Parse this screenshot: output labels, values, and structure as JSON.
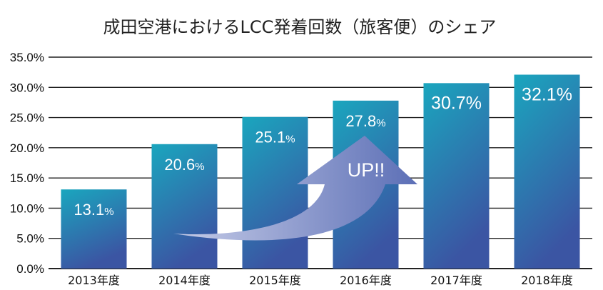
{
  "chart_data": {
    "type": "bar",
    "title": "成田空港におけるLCC発着回数（旅客便）のシェア",
    "xlabel": "",
    "ylabel": "",
    "categories": [
      "2013年度",
      "2014年度",
      "2015年度",
      "2016年度",
      "2017年度",
      "2018年度"
    ],
    "values": [
      13.1,
      20.6,
      25.1,
      27.8,
      30.7,
      32.1
    ],
    "value_labels": [
      {
        "num": "13.1",
        "unit": "%"
      },
      {
        "num": "20.6",
        "unit": "%"
      },
      {
        "num": "25.1",
        "unit": "%"
      },
      {
        "num": "27.8",
        "unit": "%"
      },
      {
        "num": "30.7",
        "unit": "%"
      },
      {
        "num": "32.1",
        "unit": "%"
      }
    ],
    "y_ticks": [
      "0.0%",
      "5.0%",
      "10.0%",
      "15.0%",
      "20.0%",
      "25.0%",
      "30.0%",
      "35.0%"
    ],
    "ylim": [
      0,
      35
    ],
    "grid": true,
    "legend": "none",
    "annotation": "UP!!",
    "colors": {
      "bar_top": "#1aa6be",
      "bar_bottom": "#3b55a3",
      "arrow_light": "#c7cde8",
      "arrow_dark": "#5c6fb6",
      "grid": "#222222"
    }
  }
}
